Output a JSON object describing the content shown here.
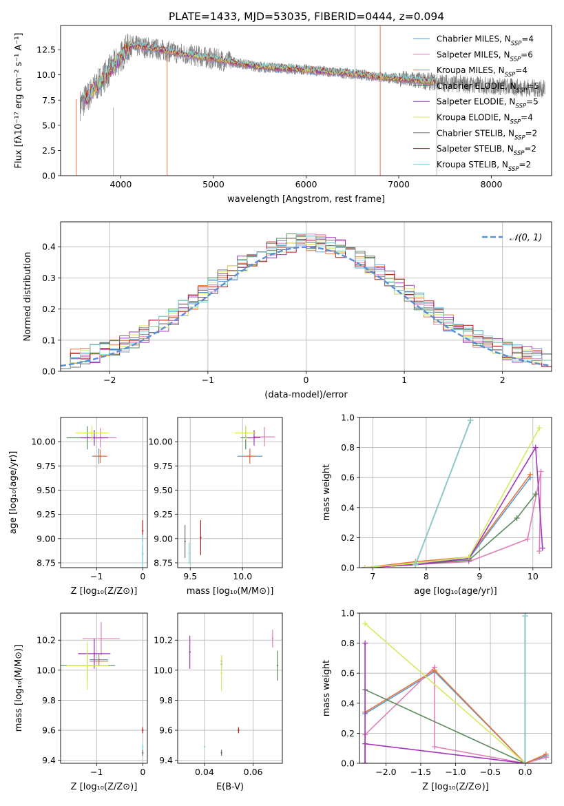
{
  "title": "PLATE=1433, MJD=53035, FIBERID=0444, z=0.094",
  "legend_series": [
    {
      "name_main": "Chabrier MILES, N",
      "name_sub": "SSP",
      "name_tail": "=4",
      "color": "#5b9bd5"
    },
    {
      "name_main": "Salpeter MILES, N",
      "name_sub": "SSP",
      "name_tail": "=6",
      "color": "#e07fb7"
    },
    {
      "name_main": "Kroupa MILES, N",
      "name_sub": "SSP",
      "name_tail": "=4",
      "color": "#e8763a"
    },
    {
      "name_main": "Chabrier ELODIE, N",
      "name_sub": "SSP",
      "name_tail": "=5",
      "color": "#5a8a5e"
    },
    {
      "name_main": "Salpeter ELODIE, N",
      "name_sub": "SSP",
      "name_tail": "=5",
      "color": "#a033b8"
    },
    {
      "name_main": "Kroupa ELODIE, N",
      "name_sub": "SSP",
      "name_tail": "=4",
      "color": "#d4ea5c"
    },
    {
      "name_main": "Chabrier STELIB, N",
      "name_sub": "SSP",
      "name_tail": "=2",
      "color": "#6e6e6e"
    },
    {
      "name_main": "Salpeter STELIB, N",
      "name_sub": "SSP",
      "name_tail": "=2",
      "color": "#b01e1e"
    },
    {
      "name_main": "Kroupa STELIB, N",
      "name_sub": "SSP",
      "name_tail": "=2",
      "color": "#7fd8d8"
    }
  ],
  "chart_data": [
    {
      "id": "spectrum",
      "type": "line",
      "xlabel": "wavelength [Angstrom, rest frame]",
      "ylabel": "Flux [fλ10⁻¹⁷ erg cm⁻² s⁻¹ A⁻¹]",
      "xlim": [
        3350,
        8650
      ],
      "ylim": [
        0,
        14.9
      ],
      "xticks": [
        4000,
        5000,
        6000,
        7000,
        8000
      ],
      "yticks": [
        0.0,
        2.5,
        5.0,
        7.5,
        10.0,
        12.5
      ],
      "ytick_labels": [
        "0.0",
        "2.5",
        "5.0",
        "7.5",
        "10.0",
        "12.5"
      ],
      "data_range_x": [
        3560,
        8580
      ],
      "continuum_x": [
        3560,
        3650,
        3800,
        3950,
        4100,
        4300,
        4600,
        5000,
        5500,
        6000,
        6500,
        7000,
        7500,
        8000,
        8580
      ],
      "continuum_y": [
        7.0,
        7.9,
        9.6,
        11.2,
        12.9,
        12.7,
        12.2,
        11.6,
        10.8,
        10.5,
        10.1,
        9.6,
        9.2,
        8.9,
        8.6
      ],
      "model_range_x": [
        3600,
        7400
      ],
      "spike_lines": [
        {
          "x": 3520,
          "y0": 0,
          "y1": 7.6
        },
        {
          "x": 3920,
          "y0": 0,
          "y1": 6.8
        },
        {
          "x": 4500,
          "y0": 0,
          "y1": 12.0
        },
        {
          "x": 6530,
          "y0": 0,
          "y1": 14.9
        },
        {
          "x": 6800,
          "y0": 0,
          "y1": 14.9
        },
        {
          "x": 7410,
          "y0": 0,
          "y1": 9.0
        }
      ]
    },
    {
      "id": "residuals",
      "type": "histogram",
      "xlabel": "(data-model)/error",
      "ylabel": "Normed distribution",
      "xlim": [
        -2.5,
        2.5
      ],
      "ylim": [
        0,
        0.48
      ],
      "xticks": [
        -2,
        -1,
        0,
        1,
        2
      ],
      "xtick_labels": [
        "−2",
        "−1",
        "0",
        "1",
        "2"
      ],
      "yticks": [
        0.0,
        0.1,
        0.2,
        0.3,
        0.4
      ],
      "ytick_labels": [
        "0.0",
        "0.1",
        "0.2",
        "0.3",
        "0.4"
      ],
      "bin_width": 0.1,
      "gaussian_label": "𝒩(0, 1)",
      "gaussian_color": "#5b8fd6"
    },
    {
      "id": "age_vs_Z",
      "type": "errorbar",
      "xlabel": "Z [log₁₀(Z/Z⊙)]",
      "ylabel": "age  [log₁₀(age/yr)]",
      "xlim": [
        -1.78,
        0.1
      ],
      "ylim": [
        8.7,
        10.25
      ],
      "xticks": [
        -1,
        0
      ],
      "xtick_labels": [
        "−1",
        "0"
      ],
      "yticks": [
        8.75,
        9.0,
        9.25,
        9.5,
        9.75,
        10.0
      ],
      "ytick_labels": [
        "8.75",
        "9.00",
        "9.25",
        "9.50",
        "9.75",
        "10.00"
      ],
      "points": [
        {
          "s": 0,
          "x": -0.95,
          "y": 9.85,
          "xe": 0.15,
          "ye": 0.08
        },
        {
          "s": 1,
          "x": -0.92,
          "y": 10.04,
          "xe": 0.35,
          "ye": 0.1
        },
        {
          "s": 2,
          "x": -0.92,
          "y": 9.85,
          "xe": 0.15,
          "ye": 0.07
        },
        {
          "s": 3,
          "x": -1.2,
          "y": 10.04,
          "xe": 0.45,
          "ye": 0.12
        },
        {
          "s": 4,
          "x": -1.05,
          "y": 10.04,
          "xe": 0.3,
          "ye": 0.08
        },
        {
          "s": 5,
          "x": -1.1,
          "y": 10.09,
          "xe": 0.35,
          "ye": 0.07
        },
        {
          "s": 6,
          "x": 0.0,
          "y": 8.84,
          "xe": 0.0,
          "ye": 0.09
        },
        {
          "s": 7,
          "x": 0.0,
          "y": 9.08,
          "xe": 0.0,
          "ye": 0.11
        },
        {
          "s": 8,
          "x": 0.0,
          "y": 8.84,
          "xe": 0.0,
          "ye": 0.2
        }
      ]
    },
    {
      "id": "age_vs_mass",
      "type": "errorbar",
      "xlabel": "mass [log₁₀(M/M⊙)]",
      "ylabel": "",
      "xlim": [
        9.38,
        10.38
      ],
      "ylim": [
        8.7,
        10.25
      ],
      "xticks": [
        9.5,
        10.0
      ],
      "xtick_labels": [
        "9.5",
        "10.0"
      ],
      "yticks": [
        8.75,
        9.0,
        9.25,
        9.5,
        9.75,
        10.0
      ],
      "ytick_labels": [
        "8.75",
        "9.00",
        "9.25",
        "9.50",
        "9.75",
        "10.00"
      ],
      "points": [
        {
          "s": 0,
          "x": 10.07,
          "y": 9.85,
          "xe": 0.12,
          "ye": 0.08
        },
        {
          "s": 1,
          "x": 10.21,
          "y": 10.05,
          "xe": 0.1,
          "ye": 0.1
        },
        {
          "s": 2,
          "x": 10.07,
          "y": 9.85,
          "xe": 0.06,
          "ye": 0.07
        },
        {
          "s": 3,
          "x": 10.03,
          "y": 10.04,
          "xe": 0.05,
          "ye": 0.12
        },
        {
          "s": 4,
          "x": 10.11,
          "y": 10.04,
          "xe": 0.06,
          "ye": 0.08
        },
        {
          "s": 5,
          "x": 10.03,
          "y": 10.09,
          "xe": 0.1,
          "ye": 0.07
        },
        {
          "s": 6,
          "x": 9.45,
          "y": 8.97,
          "xe": 0.0,
          "ye": 0.17
        },
        {
          "s": 7,
          "x": 9.6,
          "y": 9.01,
          "xe": 0.0,
          "ye": 0.18
        },
        {
          "s": 8,
          "x": 9.49,
          "y": 8.85,
          "xe": 0.0,
          "ye": 0.11
        }
      ]
    },
    {
      "id": "weight_vs_age",
      "type": "line",
      "xlabel": "age  [log₁₀(age/yr)]",
      "ylabel": "mass weight",
      "xlim": [
        6.75,
        10.35
      ],
      "ylim": [
        0,
        1.0
      ],
      "xticks": [
        7,
        8,
        9,
        10
      ],
      "xtick_labels": [
        "7",
        "8",
        "9",
        "10"
      ],
      "yticks": [
        0.0,
        0.2,
        0.4,
        0.6,
        0.8,
        1.0
      ],
      "ytick_labels": [
        "0.0",
        "0.2",
        "0.4",
        "0.6",
        "0.8",
        "1.0"
      ],
      "series": [
        {
          "s": 0,
          "x": [
            6.85,
            7.8,
            8.8,
            9.95
          ],
          "y": [
            0.0,
            0.03,
            0.06,
            0.6
          ]
        },
        {
          "s": 1,
          "x": [
            6.85,
            7.8,
            8.8,
            9.9,
            10.15,
            10.12
          ],
          "y": [
            0.0,
            0.02,
            0.04,
            0.19,
            0.64,
            0.11
          ]
        },
        {
          "s": 2,
          "x": [
            6.85,
            7.8,
            8.8,
            9.95
          ],
          "y": [
            0.0,
            0.04,
            0.07,
            0.62
          ]
        },
        {
          "s": 3,
          "x": [
            6.85,
            7.8,
            8.8,
            9.7,
            10.05
          ],
          "y": [
            0.0,
            0.02,
            0.05,
            0.33,
            0.49
          ]
        },
        {
          "s": 4,
          "x": [
            6.85,
            7.8,
            8.8,
            10.05,
            10.18
          ],
          "y": [
            0.0,
            0.02,
            0.06,
            0.8,
            0.13
          ]
        },
        {
          "s": 5,
          "x": [
            6.85,
            7.8,
            8.8,
            10.12
          ],
          "y": [
            0.0,
            0.03,
            0.07,
            0.93
          ]
        },
        {
          "s": 6,
          "x": [
            7.8,
            8.83
          ],
          "y": [
            0.02,
            0.98
          ]
        },
        {
          "s": 7,
          "x": [
            7.8,
            8.83
          ],
          "y": [
            0.02,
            0.98
          ]
        },
        {
          "s": 8,
          "x": [
            7.8,
            8.83
          ],
          "y": [
            0.02,
            0.98
          ]
        }
      ]
    },
    {
      "id": "mass_vs_Z",
      "type": "errorbar",
      "xlabel": "Z [log₁₀(Z/Z⊙)]",
      "ylabel": "mass [log₁₀(M/M⊙)]",
      "xlim": [
        -1.78,
        0.1
      ],
      "ylim": [
        9.38,
        10.38
      ],
      "xticks": [
        -1,
        0
      ],
      "xtick_labels": [
        "−1",
        "0"
      ],
      "yticks": [
        9.4,
        9.6,
        9.8,
        10.0,
        10.2
      ],
      "ytick_labels": [
        "9.4",
        "9.6",
        "9.8",
        "10.0",
        "10.2"
      ],
      "points": [
        {
          "s": 0,
          "x": -0.95,
          "y": 10.07,
          "xe": 0.2,
          "ye": 0.04
        },
        {
          "s": 1,
          "x": -0.9,
          "y": 10.21,
          "xe": 0.4,
          "ye": 0.11
        },
        {
          "s": 2,
          "x": -0.95,
          "y": 10.06,
          "xe": 0.2,
          "ye": 0.03
        },
        {
          "s": 3,
          "x": -1.2,
          "y": 10.03,
          "xe": 0.6,
          "ye": 0.1
        },
        {
          "s": 4,
          "x": -1.05,
          "y": 10.11,
          "xe": 0.35,
          "ye": 0.1
        },
        {
          "s": 5,
          "x": -1.2,
          "y": 10.03,
          "xe": 0.45,
          "ye": 0.16
        },
        {
          "s": 6,
          "x": 0.0,
          "y": 9.45,
          "xe": 0.0,
          "ye": 0.02
        },
        {
          "s": 7,
          "x": 0.0,
          "y": 9.6,
          "xe": 0.0,
          "ye": 0.02
        },
        {
          "s": 8,
          "x": 0.0,
          "y": 9.49,
          "xe": 0.0,
          "ye": 0.02
        }
      ]
    },
    {
      "id": "mass_vs_ebv",
      "type": "errorbar",
      "xlabel": "E(B-V)",
      "ylabel": "",
      "xlim": [
        0.029,
        0.072
      ],
      "ylim": [
        9.38,
        10.38
      ],
      "xticks": [
        0.04,
        0.06
      ],
      "xtick_labels": [
        "0.04",
        "0.06"
      ],
      "yticks": [
        9.4,
        9.6,
        9.8,
        10.0,
        10.2
      ],
      "ytick_labels": [
        "9.4",
        "9.6",
        "9.8",
        "10.0",
        "10.2"
      ],
      "points": [
        {
          "s": 0,
          "x": 0.047,
          "y": 10.04,
          "xe": 0.0,
          "ye": 0.04
        },
        {
          "s": 1,
          "x": 0.068,
          "y": 10.21,
          "xe": 0.0,
          "ye": 0.06
        },
        {
          "s": 2,
          "x": 0.047,
          "y": 10.06,
          "xe": 0.0,
          "ye": 0.03
        },
        {
          "s": 3,
          "x": 0.07,
          "y": 10.03,
          "xe": 0.0,
          "ye": 0.1
        },
        {
          "s": 4,
          "x": 0.034,
          "y": 10.12,
          "xe": 0.0,
          "ye": 0.11
        },
        {
          "s": 5,
          "x": 0.047,
          "y": 9.98,
          "xe": 0.0,
          "ye": 0.12
        },
        {
          "s": 6,
          "x": 0.047,
          "y": 9.45,
          "xe": 0.0,
          "ye": 0.02
        },
        {
          "s": 7,
          "x": 0.054,
          "y": 9.6,
          "xe": 0.0,
          "ye": 0.02
        },
        {
          "s": 8,
          "x": 0.04,
          "y": 9.49,
          "xe": 0.0,
          "ye": 0.01
        }
      ]
    },
    {
      "id": "weight_vs_Z",
      "type": "line",
      "xlabel": "Z [log₁₀(Z/Z⊙)]",
      "ylabel": "mass weight",
      "xlim": [
        -2.38,
        0.38
      ],
      "ylim": [
        0,
        1.0
      ],
      "xticks": [
        -2.0,
        -1.5,
        -1.0,
        -0.5,
        0.0
      ],
      "xtick_labels": [
        "−2.0",
        "−1.5",
        "−1.0",
        "−0.5",
        "0.0"
      ],
      "yticks": [
        0.0,
        0.2,
        0.4,
        0.6,
        0.8,
        1.0
      ],
      "ytick_labels": [
        "0.0",
        "0.2",
        "0.4",
        "0.6",
        "0.8",
        "1.0"
      ],
      "series": [
        {
          "s": 0,
          "x": [
            -2.3,
            -1.3,
            0.0,
            0.3
          ],
          "y": [
            0.33,
            0.61,
            0.0,
            0.05
          ]
        },
        {
          "s": 1,
          "x": [
            -2.3,
            -2.3,
            -1.3,
            -1.3,
            0.0,
            0.3
          ],
          "y": [
            0.0,
            0.19,
            0.64,
            0.11,
            0.0,
            0.04
          ]
        },
        {
          "s": 2,
          "x": [
            -2.3,
            -1.3,
            0.0,
            0.3
          ],
          "y": [
            0.34,
            0.62,
            0.0,
            0.06
          ]
        },
        {
          "s": 3,
          "x": [
            -2.3,
            0.0
          ],
          "y": [
            0.49,
            0.0
          ]
        },
        {
          "s": 4,
          "x": [
            -2.3,
            -2.3,
            -2.3,
            0.0
          ],
          "y": [
            0.0,
            0.8,
            0.13,
            0.0
          ]
        },
        {
          "s": 5,
          "x": [
            -2.3,
            0.0
          ],
          "y": [
            0.93,
            0.0
          ]
        },
        {
          "s": 6,
          "x": [
            0.0,
            0.0
          ],
          "y": [
            0.0,
            0.98
          ]
        },
        {
          "s": 7,
          "x": [
            0.0,
            0.0
          ],
          "y": [
            0.0,
            0.98
          ]
        },
        {
          "s": 8,
          "x": [
            0.0,
            0.0
          ],
          "y": [
            0.0,
            0.98
          ]
        }
      ]
    }
  ]
}
